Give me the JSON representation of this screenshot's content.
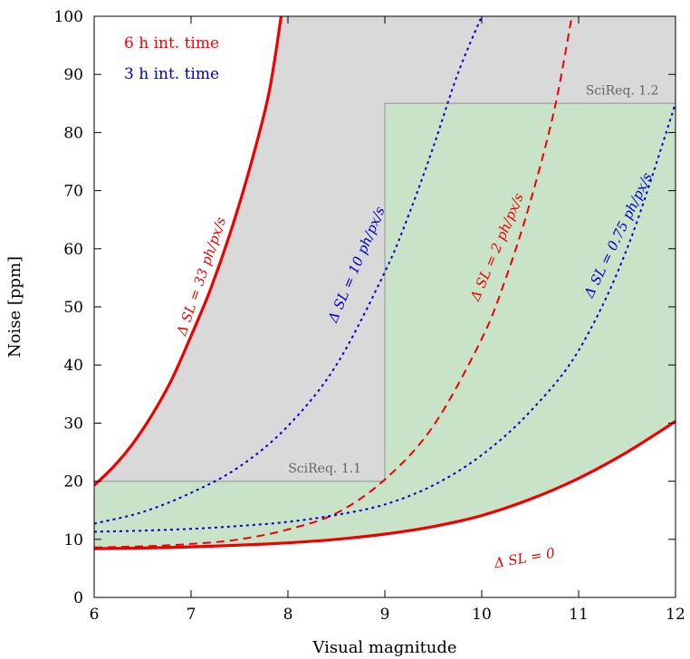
{
  "chart_data": {
    "type": "line",
    "xlabel": "Visual magnitude",
    "ylabel": "Noise [ppm]",
    "xlim": [
      6,
      12
    ],
    "ylim": [
      0,
      100
    ],
    "xticks": [
      "6",
      "7",
      "8",
      "9",
      "10",
      "11",
      "12"
    ],
    "yticks": [
      "0",
      "10",
      "20",
      "30",
      "40",
      "50",
      "60",
      "70",
      "80",
      "90",
      "100"
    ],
    "grid": false,
    "legend": [
      {
        "label": "6 h int. time",
        "color": "#ff0000"
      },
      {
        "label": "3 h int. time",
        "color": "#0000cc"
      }
    ],
    "regions": [
      {
        "label": "SciReq. 1.1",
        "x_max": 9,
        "y_max": 20,
        "fill": "#c8e3c8"
      },
      {
        "label": "SciReq. 1.2",
        "x_min": 9,
        "y_max": 85,
        "fill": "#c8e3c8"
      },
      {
        "fill": "#d9d9d9",
        "description_color_only": true
      }
    ],
    "series": [
      {
        "name": "Δ SL = 0",
        "style": "solid",
        "color": "#ee0000",
        "integration": "6 h",
        "x": [
          6,
          6.5,
          7,
          7.5,
          8,
          8.5,
          9,
          9.5,
          10,
          10.5,
          11,
          11.5,
          12
        ],
        "y": [
          8.4,
          8.5,
          8.7,
          9.0,
          9.4,
          10.0,
          10.9,
          12.2,
          14.1,
          16.9,
          20.5,
          25.0,
          30.3
        ]
      },
      {
        "name": "Δ SL = 33 ph/px/s",
        "style": "solid",
        "color": "#ee0000",
        "integration": "6 h",
        "x": [
          6,
          6.2,
          6.4,
          6.6,
          6.8,
          7.0,
          7.2,
          7.4,
          7.6,
          7.8,
          7.93
        ],
        "y": [
          19.3,
          22.5,
          26.5,
          31.5,
          37.5,
          45.0,
          53.0,
          62.5,
          73.5,
          86.5,
          100
        ]
      },
      {
        "name": "Δ SL = 10 ph/px/s",
        "style": "dotted",
        "color": "#0000cc",
        "integration": "3 h",
        "x": [
          6,
          6.5,
          7,
          7.5,
          8,
          8.5,
          9,
          9.25,
          9.5,
          9.75,
          10.0
        ],
        "y": [
          12.7,
          14.7,
          18.0,
          22.5,
          29.5,
          40.0,
          56.0,
          66.0,
          77.5,
          90.0,
          100
        ]
      },
      {
        "name": "Δ SL = 2 ph/px/s",
        "style": "dashed",
        "color": "#ee0000",
        "integration": "6 h",
        "x": [
          6,
          6.5,
          7,
          7.5,
          8,
          8.5,
          9,
          9.5,
          10,
          10.25,
          10.5,
          10.75,
          10.93
        ],
        "y": [
          8.6,
          8.8,
          9.2,
          10.0,
          11.7,
          14.5,
          20.3,
          29.5,
          44.5,
          55.0,
          68.0,
          84.0,
          100
        ]
      },
      {
        "name": "Δ SL = 0.75 ph/px/s",
        "style": "dotted",
        "color": "#0000cc",
        "integration": "3 h",
        "x": [
          6,
          6.5,
          7,
          7.5,
          8,
          8.5,
          9,
          9.5,
          10,
          10.5,
          11,
          11.5,
          12
        ],
        "y": [
          11.3,
          11.5,
          11.8,
          12.3,
          13.0,
          14.2,
          16.0,
          19.3,
          24.5,
          32.0,
          42.5,
          60.0,
          85.0
        ]
      }
    ],
    "annotations": [
      {
        "text": "Δ SL = 33 ph/px/s",
        "color": "#ee0000",
        "x": 7.15,
        "y": 55,
        "angle": -71
      },
      {
        "text": "Δ SL = 10 ph/px/s",
        "color": "#0000cc",
        "x": 8.75,
        "y": 57,
        "angle": -67
      },
      {
        "text": "Δ SL = 2 ph/px/s",
        "color": "#ee0000",
        "x": 10.2,
        "y": 60,
        "angle": -67
      },
      {
        "text": "Δ SL = 0.75 ph/px/s",
        "color": "#0000cc",
        "x": 11.45,
        "y": 62,
        "angle": -64
      },
      {
        "text": "Δ SL = 0",
        "color": "#ee0000",
        "x": 10.45,
        "y": 6,
        "angle": -10
      },
      {
        "text": "SciReq. 1.1",
        "color": "#666666",
        "x": 8.38,
        "y": 21.5,
        "angle": 0
      },
      {
        "text": "SciReq. 1.2",
        "color": "#666666",
        "x": 11.45,
        "y": 86.5,
        "angle": 0
      }
    ]
  }
}
